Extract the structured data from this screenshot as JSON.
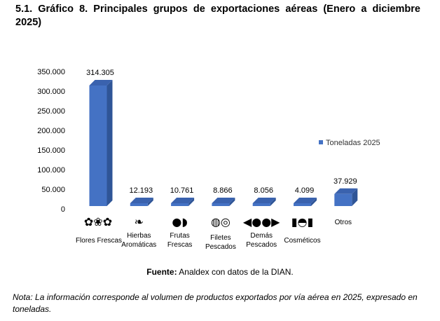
{
  "title": "5.1. Gráfico 8. Principales grupos de exportaciones aéreas (Enero a diciembre 2025)",
  "source_label": "Fuente:",
  "source_text": " Analdex con datos de la DIAN.",
  "note": "Nota: La información corresponde al volumen de productos exportados por vía aérea en 2025, expresado en toneladas.",
  "colors": {
    "bar_front": "#4472C4",
    "bar_side": "#2F5597",
    "bar_top": "#3A62AE"
  },
  "chart_data": {
    "type": "bar",
    "title": "",
    "categories": [
      [
        "Flores Frescas"
      ],
      [
        "Hierbas",
        "Aromáticas"
      ],
      [
        "Frutas",
        "Frescas"
      ],
      [
        "Filetes",
        "Pescados"
      ],
      [
        "Demás",
        "Pescados"
      ],
      [
        "Cosméticos"
      ],
      [
        "Otros"
      ]
    ],
    "icons": [
      "flowers-icon",
      "herbs-icon",
      "fruit-icon",
      "fish-fillet-icon",
      "fish-icon",
      "cosmetics-icon",
      ""
    ],
    "series": [
      {
        "name": "Toneladas 2025",
        "values": [
          314305,
          12193,
          10761,
          8866,
          8056,
          4099,
          37929
        ]
      }
    ],
    "data_labels": [
      "314.305",
      "12.193",
      "10.761",
      "8.866",
      "8.056",
      "4.099",
      "37.929"
    ],
    "y_ticks": [
      0,
      50000,
      100000,
      150000,
      200000,
      250000,
      300000,
      350000
    ],
    "y_tick_labels": [
      "0",
      "50.000",
      "100.000",
      "150.000",
      "200.000",
      "250.000",
      "300.000",
      "350.000"
    ],
    "ylim": [
      0,
      350000
    ],
    "grid": false,
    "legend": "right"
  }
}
